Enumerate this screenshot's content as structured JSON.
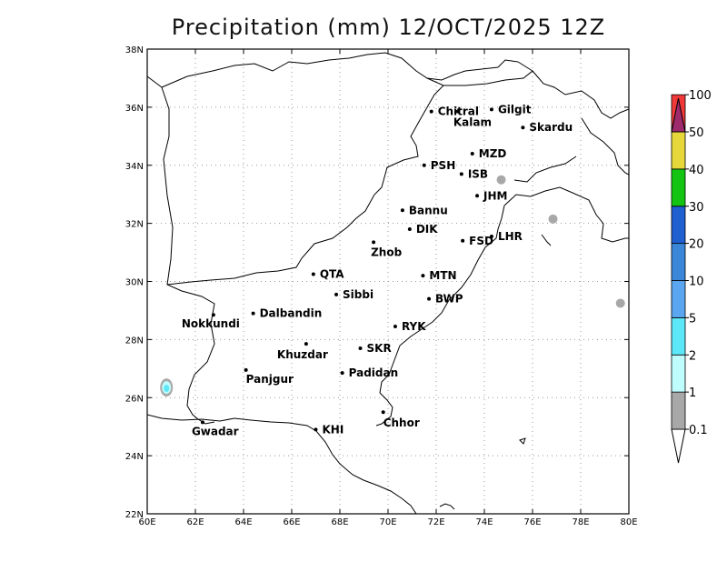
{
  "title": "Precipitation (mm) 12/OCT/2025 12Z",
  "map": {
    "lon_ticks": [
      "60E",
      "62E",
      "64E",
      "66E",
      "68E",
      "70E",
      "72E",
      "74E",
      "76E",
      "78E",
      "80E"
    ],
    "lat_ticks": [
      "22N",
      "24N",
      "26N",
      "28N",
      "30N",
      "32N",
      "34N",
      "36N",
      "38N"
    ],
    "grid": "dotted",
    "cities": [
      {
        "name": "Chitral",
        "lon": 71.8,
        "lat": 35.85
      },
      {
        "name": "Kalam",
        "lon": 72.9,
        "lat": 35.85
      },
      {
        "name": "Gilgit",
        "lon": 74.3,
        "lat": 35.92
      },
      {
        "name": "Skardu",
        "lon": 75.6,
        "lat": 35.3
      },
      {
        "name": "MZD",
        "lon": 73.5,
        "lat": 34.4
      },
      {
        "name": "PSH",
        "lon": 71.5,
        "lat": 34.0
      },
      {
        "name": "ISB",
        "lon": 73.05,
        "lat": 33.7
      },
      {
        "name": "JHM",
        "lon": 73.7,
        "lat": 32.95
      },
      {
        "name": "Bannu",
        "lon": 70.6,
        "lat": 32.45
      },
      {
        "name": "DIK",
        "lon": 70.9,
        "lat": 31.8
      },
      {
        "name": "FSD",
        "lon": 73.1,
        "lat": 31.4
      },
      {
        "name": "LHR",
        "lon": 74.3,
        "lat": 31.55
      },
      {
        "name": "Zhob",
        "lon": 69.4,
        "lat": 31.35
      },
      {
        "name": "QTA",
        "lon": 66.9,
        "lat": 30.25
      },
      {
        "name": "MTN",
        "lon": 71.45,
        "lat": 30.2
      },
      {
        "name": "Sibbi",
        "lon": 67.85,
        "lat": 29.55
      },
      {
        "name": "BWP",
        "lon": 71.7,
        "lat": 29.4
      },
      {
        "name": "Dalbandin",
        "lon": 64.4,
        "lat": 28.9
      },
      {
        "name": "Nokkundi",
        "lon": 62.75,
        "lat": 28.85
      },
      {
        "name": "RYK",
        "lon": 70.3,
        "lat": 28.45
      },
      {
        "name": "Khuzdar",
        "lon": 66.6,
        "lat": 27.85
      },
      {
        "name": "SKR",
        "lon": 68.85,
        "lat": 27.7
      },
      {
        "name": "Panjgur",
        "lon": 64.1,
        "lat": 26.95
      },
      {
        "name": "Padidan",
        "lon": 68.1,
        "lat": 26.85
      },
      {
        "name": "Chhor",
        "lon": 69.8,
        "lat": 25.5
      },
      {
        "name": "KHI",
        "lon": 67.0,
        "lat": 24.9
      },
      {
        "name": "Gwadar",
        "lon": 62.3,
        "lat": 25.15
      }
    ],
    "precip_areas": [
      {
        "lon": 60.8,
        "lat": 26.35,
        "amount": "2"
      },
      {
        "lon": 76.85,
        "lat": 32.15,
        "amount": "0.1"
      },
      {
        "lon": 79.65,
        "lat": 29.25,
        "amount": "0.1"
      },
      {
        "lon": 74.7,
        "lat": 33.5,
        "amount": "0.1"
      }
    ]
  },
  "colorbar": {
    "levels": [
      "0.1",
      "1",
      "2",
      "5",
      "10",
      "20",
      "30",
      "40",
      "50",
      "100"
    ],
    "colors": [
      "#a8a8a8",
      "#bffcfc",
      "#5ce8f8",
      "#5aa6f0",
      "#3a86d8",
      "#1f5fd0",
      "#13c413",
      "#e6d83a",
      "#f03838",
      "#9c2a6c"
    ]
  }
}
